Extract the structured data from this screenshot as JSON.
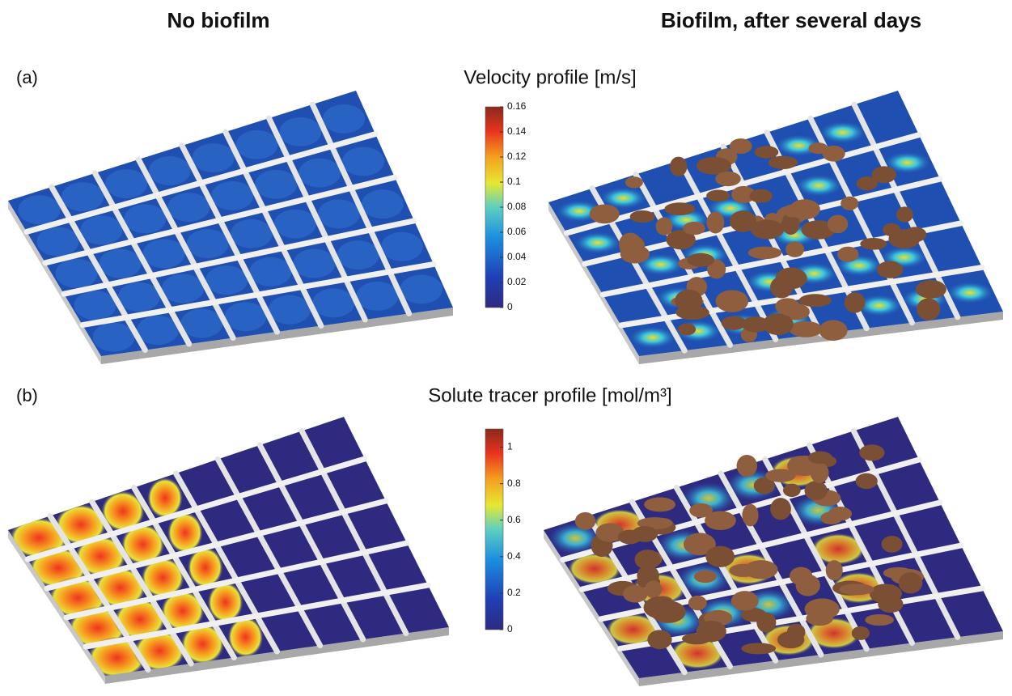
{
  "header": {
    "left": "No biofilm",
    "right": "Biofilm, after several days"
  },
  "panels": [
    {
      "label": "(a)",
      "title": "Velocity profile [m/s]",
      "colorbar": {
        "lim": [
          0,
          0.16
        ],
        "ticks": [
          0,
          0.02,
          0.04,
          0.06,
          0.08,
          0.1,
          0.12,
          0.14,
          0.16
        ]
      }
    },
    {
      "label": "(b)",
      "title": "Solute tracer profile [mol/m³]",
      "colorbar": {
        "lim": [
          0,
          1.1
        ],
        "ticks": [
          0,
          0.2,
          0.4,
          0.6,
          0.8,
          1
        ]
      }
    }
  ]
}
